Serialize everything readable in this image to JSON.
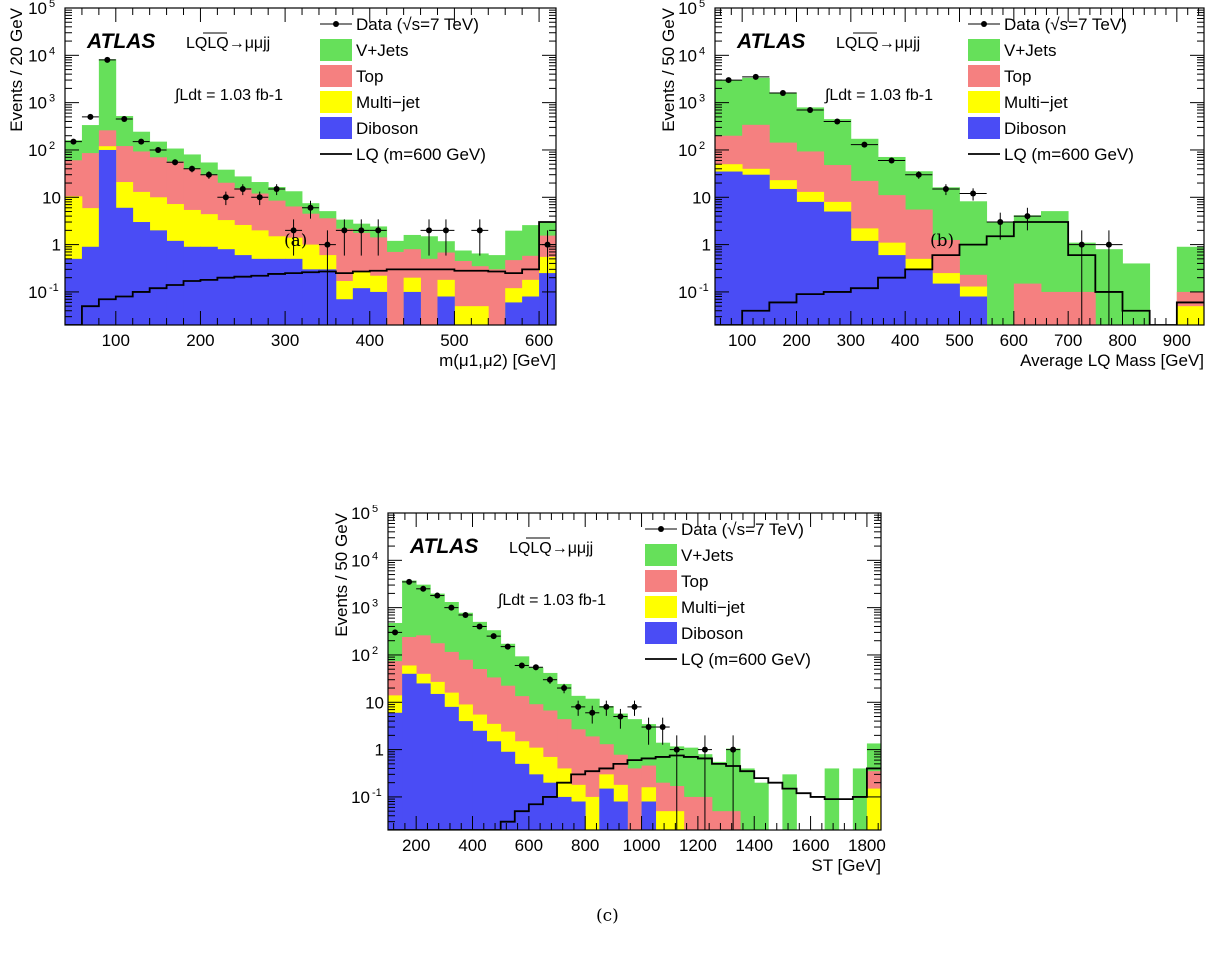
{
  "captions": [
    "(a)",
    "(b)",
    "(c)"
  ],
  "colors": {
    "vjets": "#66e05a",
    "top": "#f58080",
    "multijet": "#ffff00",
    "diboson": "#4a4cf5",
    "lq": "#000000",
    "data": "#000000"
  },
  "chart_data": [
    {
      "type": "bar",
      "stacked": true,
      "log_y": true,
      "xlabel": "m(μ1,μ2) [GeV]",
      "ylabel": "Events / 20 GeV",
      "xlim": [
        40,
        620
      ],
      "ylim": [
        0.02,
        100000
      ],
      "x_ticks": [
        100,
        200,
        300,
        400,
        500,
        600
      ],
      "atlas_label": "ATLAS",
      "process_label": "LQLQ→μμjj",
      "lumi_label": "∫Ldt = 1.03 fb-1",
      "legend": [
        "Data (√s=7 TeV)",
        "V+Jets",
        "Top",
        "Multi−jet",
        "Diboson",
        "LQ (m=600 GeV)"
      ],
      "legend_position": "top-right",
      "bin_edges": [
        40,
        60,
        80,
        100,
        120,
        140,
        160,
        180,
        200,
        220,
        240,
        260,
        280,
        300,
        320,
        340,
        360,
        380,
        400,
        420,
        440,
        460,
        480,
        500,
        520,
        540,
        560,
        580,
        600,
        620
      ],
      "series": [
        {
          "name": "Diboson",
          "values": [
            0.5,
            0.9,
            100,
            6,
            3,
            2,
            1.2,
            0.9,
            0.9,
            0.8,
            0.6,
            0.5,
            0.5,
            0.5,
            0.3,
            0.3,
            0.07,
            0.12,
            0.1,
            0.02,
            0.1,
            0.02,
            0.08,
            0.02,
            0.02,
            0.02,
            0.06,
            0.08,
            0.25
          ]
        },
        {
          "name": "Multi-jet",
          "values": [
            10,
            5,
            20,
            15,
            10,
            8,
            6,
            4.5,
            3.5,
            2.5,
            2,
            1.5,
            1,
            0.9,
            0.7,
            0.3,
            0.1,
            0.15,
            0.12,
            0.02,
            0.1,
            0.02,
            0.1,
            0.05,
            0.05,
            0.02,
            0.06,
            0.1,
            0.3
          ]
        },
        {
          "name": "Top",
          "values": [
            50,
            80,
            140,
            100,
            80,
            60,
            50,
            35,
            25,
            17,
            13,
            10,
            7,
            5,
            3.5,
            3,
            2,
            1.5,
            1.2,
            0.7,
            0.6,
            0.5,
            0.5,
            0.4,
            0.3,
            0.3,
            0.35,
            0.4,
            1
          ]
        },
        {
          "name": "V+Jets",
          "values": [
            100,
            250,
            8000,
            400,
            150,
            80,
            50,
            40,
            25,
            18,
            12,
            9,
            8,
            7,
            3,
            1.5,
            1.2,
            1,
            1,
            0.5,
            0.8,
            1,
            0.5,
            0.3,
            0.3,
            0.3,
            1.5,
            2,
            1.5
          ]
        },
        {
          "name": "LQ (m=600 GeV)",
          "values": [
            0.02,
            0.05,
            0.07,
            0.08,
            0.1,
            0.12,
            0.14,
            0.17,
            0.18,
            0.2,
            0.21,
            0.22,
            0.24,
            0.25,
            0.26,
            0.27,
            0.25,
            0.27,
            0.28,
            0.3,
            0.3,
            0.3,
            0.3,
            0.28,
            0.28,
            0.27,
            0.25,
            0.3,
            3
          ]
        }
      ],
      "data_points": [
        {
          "x": 50,
          "y": 150
        },
        {
          "x": 70,
          "y": 500
        },
        {
          "x": 90,
          "y": 8000
        },
        {
          "x": 110,
          "y": 450
        },
        {
          "x": 130,
          "y": 150
        },
        {
          "x": 150,
          "y": 100
        },
        {
          "x": 170,
          "y": 55
        },
        {
          "x": 190,
          "y": 40
        },
        {
          "x": 210,
          "y": 30
        },
        {
          "x": 230,
          "y": 10
        },
        {
          "x": 250,
          "y": 15
        },
        {
          "x": 270,
          "y": 10
        },
        {
          "x": 290,
          "y": 15
        },
        {
          "x": 310,
          "y": 2
        },
        {
          "x": 330,
          "y": 6
        },
        {
          "x": 350,
          "y": 1
        },
        {
          "x": 370,
          "y": 2
        },
        {
          "x": 390,
          "y": 2
        },
        {
          "x": 410,
          "y": 2
        },
        {
          "x": 470,
          "y": 2
        },
        {
          "x": 490,
          "y": 2
        },
        {
          "x": 530,
          "y": 2
        },
        {
          "x": 610,
          "y": 1
        }
      ]
    },
    {
      "type": "bar",
      "stacked": true,
      "log_y": true,
      "xlabel": "Average LQ Mass [GeV]",
      "ylabel": "Events / 50 GeV",
      "xlim": [
        50,
        950
      ],
      "ylim": [
        0.02,
        100000
      ],
      "x_ticks": [
        100,
        200,
        300,
        400,
        500,
        600,
        700,
        800,
        900
      ],
      "atlas_label": "ATLAS",
      "process_label": "LQLQ→μμjj",
      "lumi_label": "∫Ldt = 1.03 fb-1",
      "legend": [
        "Data (√s=7 TeV)",
        "V+Jets",
        "Top",
        "Multi−jet",
        "Diboson",
        "LQ (m=600 GeV)"
      ],
      "legend_position": "top-right",
      "bin_edges": [
        50,
        100,
        150,
        200,
        250,
        300,
        350,
        400,
        450,
        500,
        550,
        600,
        650,
        700,
        750,
        800,
        850,
        900,
        950
      ],
      "series": [
        {
          "name": "Diboson",
          "values": [
            35,
            30,
            15,
            8,
            5,
            1.2,
            0.6,
            0.3,
            0.15,
            0.08,
            0.02,
            0.02,
            0.02,
            0.02,
            0.02,
            0.02,
            0.02,
            0.02
          ]
        },
        {
          "name": "Multi-jet",
          "values": [
            15,
            10,
            8,
            5,
            3,
            1,
            0.5,
            0.2,
            0.1,
            0.05,
            0.02,
            0.02,
            0.02,
            0.02,
            0.02,
            0.02,
            0.02,
            0.05
          ]
        },
        {
          "name": "Top",
          "values": [
            150,
            300,
            120,
            80,
            40,
            20,
            10,
            5,
            1,
            0.1,
            0.02,
            0.15,
            0.1,
            0.1,
            0.02,
            0.02,
            0.02,
            0.05
          ]
        },
        {
          "name": "V+Jets",
          "values": [
            2800,
            3000,
            1500,
            700,
            400,
            150,
            60,
            30,
            15,
            8,
            3,
            4,
            5,
            1,
            0.8,
            0.4,
            0.02,
            0.8
          ]
        },
        {
          "name": "LQ (m=600 GeV)",
          "values": [
            0.02,
            0.04,
            0.06,
            0.09,
            0.1,
            0.12,
            0.2,
            0.3,
            0.6,
            1,
            1.5,
            3,
            3,
            0.6,
            0.1,
            0.04,
            0.02,
            0.06
          ]
        }
      ],
      "data_points": [
        {
          "x": 75,
          "y": 3000
        },
        {
          "x": 125,
          "y": 3500
        },
        {
          "x": 175,
          "y": 1600
        },
        {
          "x": 225,
          "y": 700
        },
        {
          "x": 275,
          "y": 400
        },
        {
          "x": 325,
          "y": 130
        },
        {
          "x": 375,
          "y": 60
        },
        {
          "x": 425,
          "y": 30
        },
        {
          "x": 475,
          "y": 15
        },
        {
          "x": 525,
          "y": 12
        },
        {
          "x": 575,
          "y": 3
        },
        {
          "x": 625,
          "y": 4
        },
        {
          "x": 725,
          "y": 1
        },
        {
          "x": 775,
          "y": 1
        }
      ]
    },
    {
      "type": "bar",
      "stacked": true,
      "log_y": true,
      "xlabel": "ST [GeV]",
      "ylabel": "Events / 50 GeV",
      "xlim": [
        100,
        1850
      ],
      "ylim": [
        0.02,
        100000
      ],
      "x_ticks": [
        200,
        400,
        600,
        800,
        1000,
        1200,
        1400,
        1600,
        1800
      ],
      "atlas_label": "ATLAS",
      "process_label": "LQLQ→μμjj",
      "lumi_label": "∫Ldt = 1.03 fb-1",
      "legend": [
        "Data (√s=7 TeV)",
        "V+Jets",
        "Top",
        "Multi−jet",
        "Diboson",
        "LQ (m=600 GeV)"
      ],
      "legend_position": "top-right",
      "bin_edges": [
        100,
        150,
        200,
        250,
        300,
        350,
        400,
        450,
        500,
        550,
        600,
        650,
        700,
        750,
        800,
        850,
        900,
        950,
        1000,
        1050,
        1100,
        1150,
        1200,
        1250,
        1300,
        1350,
        1400,
        1450,
        1500,
        1550,
        1600,
        1650,
        1700,
        1750,
        1800,
        1850
      ],
      "series": [
        {
          "name": "Diboson",
          "values": [
            6,
            40,
            25,
            15,
            8,
            4,
            2.5,
            1.5,
            0.9,
            0.5,
            0.3,
            0.2,
            0.1,
            0.08,
            0.02,
            0.15,
            0.08,
            0.02,
            0.08,
            0.02,
            0.02,
            0.02,
            0.02,
            0.02,
            0.02,
            0.02,
            0.02,
            0.02,
            0.02,
            0.02,
            0.02,
            0.02,
            0.02,
            0.02,
            0.02
          ]
        },
        {
          "name": "Multi-jet",
          "values": [
            8,
            20,
            15,
            12,
            8,
            5,
            3,
            2,
            1.5,
            1,
            0.8,
            0.5,
            0.3,
            0.1,
            0.1,
            0.15,
            0.1,
            0.02,
            0.08,
            0.05,
            0.05,
            0.02,
            0.02,
            0.02,
            0.02,
            0.02,
            0.02,
            0.02,
            0.02,
            0.02,
            0.02,
            0.02,
            0.02,
            0.02,
            0.15
          ]
        },
        {
          "name": "Top",
          "values": [
            60,
            180,
            220,
            150,
            100,
            70,
            45,
            30,
            20,
            12,
            8,
            6,
            4,
            2.5,
            1.8,
            1,
            0.6,
            0.4,
            0.3,
            0.15,
            0.12,
            0.1,
            0.1,
            0.05,
            0.05,
            0.02,
            0.02,
            0.02,
            0.02,
            0.02,
            0.02,
            0.02,
            0.02,
            0.02,
            0.2
          ]
        },
        {
          "name": "V+Jets",
          "values": [
            400,
            3500,
            2800,
            1800,
            1200,
            700,
            450,
            300,
            150,
            80,
            45,
            35,
            20,
            11,
            10,
            7,
            5,
            4,
            3,
            1.2,
            1,
            1,
            0.7,
            0.5,
            1,
            0.4,
            0.2,
            0.02,
            0.3,
            0.02,
            0.02,
            0.4,
            0.02,
            0.4,
            1
          ]
        },
        {
          "name": "LQ (m=600 GeV)",
          "values": [
            0.02,
            0.02,
            0.02,
            0.02,
            0.02,
            0.02,
            0.02,
            0.02,
            0.03,
            0.05,
            0.07,
            0.1,
            0.2,
            0.3,
            0.35,
            0.4,
            0.5,
            0.6,
            0.65,
            0.7,
            0.75,
            0.7,
            0.65,
            0.5,
            0.45,
            0.35,
            0.25,
            0.2,
            0.15,
            0.12,
            0.1,
            0.09,
            0.09,
            0.1,
            0.4
          ]
        }
      ],
      "data_points": [
        {
          "x": 125,
          "y": 300
        },
        {
          "x": 175,
          "y": 3500
        },
        {
          "x": 225,
          "y": 2500
        },
        {
          "x": 275,
          "y": 1800
        },
        {
          "x": 325,
          "y": 1000
        },
        {
          "x": 375,
          "y": 700
        },
        {
          "x": 425,
          "y": 400
        },
        {
          "x": 475,
          "y": 250
        },
        {
          "x": 525,
          "y": 150
        },
        {
          "x": 575,
          "y": 60
        },
        {
          "x": 625,
          "y": 55
        },
        {
          "x": 675,
          "y": 30
        },
        {
          "x": 725,
          "y": 20
        },
        {
          "x": 775,
          "y": 8
        },
        {
          "x": 825,
          "y": 6
        },
        {
          "x": 875,
          "y": 8
        },
        {
          "x": 925,
          "y": 5
        },
        {
          "x": 975,
          "y": 8
        },
        {
          "x": 1025,
          "y": 3
        },
        {
          "x": 1075,
          "y": 3
        },
        {
          "x": 1125,
          "y": 1
        },
        {
          "x": 1225,
          "y": 1
        },
        {
          "x": 1325,
          "y": 1
        }
      ]
    }
  ]
}
